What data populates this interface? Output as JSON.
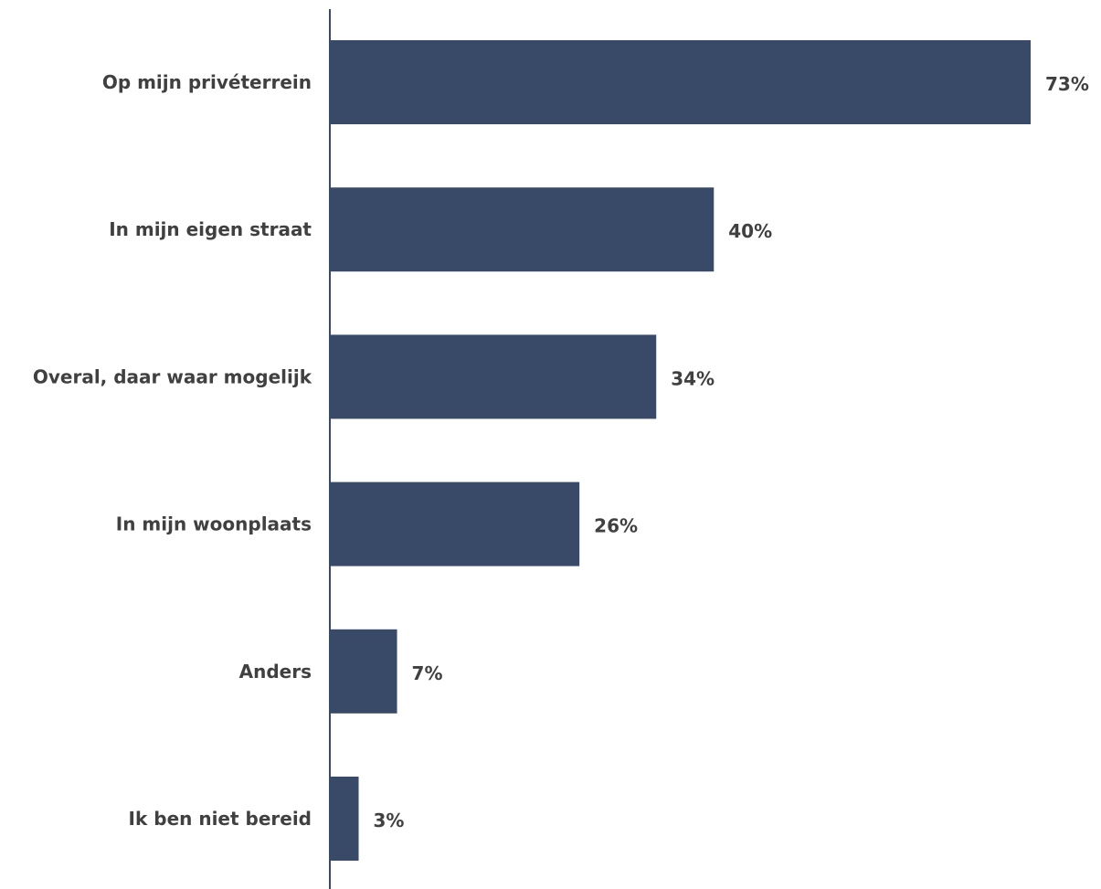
{
  "chart_data": {
    "type": "bar",
    "orientation": "horizontal",
    "categories": [
      "Op mijn privéterrein",
      "In mijn eigen straat",
      "Overal, daar waar mogelijk",
      "In mijn woonplaats",
      "Anders",
      "Ik ben niet bereid"
    ],
    "values": [
      73,
      40,
      34,
      26,
      7,
      3
    ],
    "value_labels": [
      "73%",
      "40%",
      "34%",
      "26%",
      "7%",
      "3%"
    ],
    "unit": "%",
    "xlim": [
      0,
      73
    ],
    "grid": false,
    "legend": "none",
    "bar_color": "#394a69",
    "axis_color": "#394a69",
    "text_color": "#404040"
  }
}
